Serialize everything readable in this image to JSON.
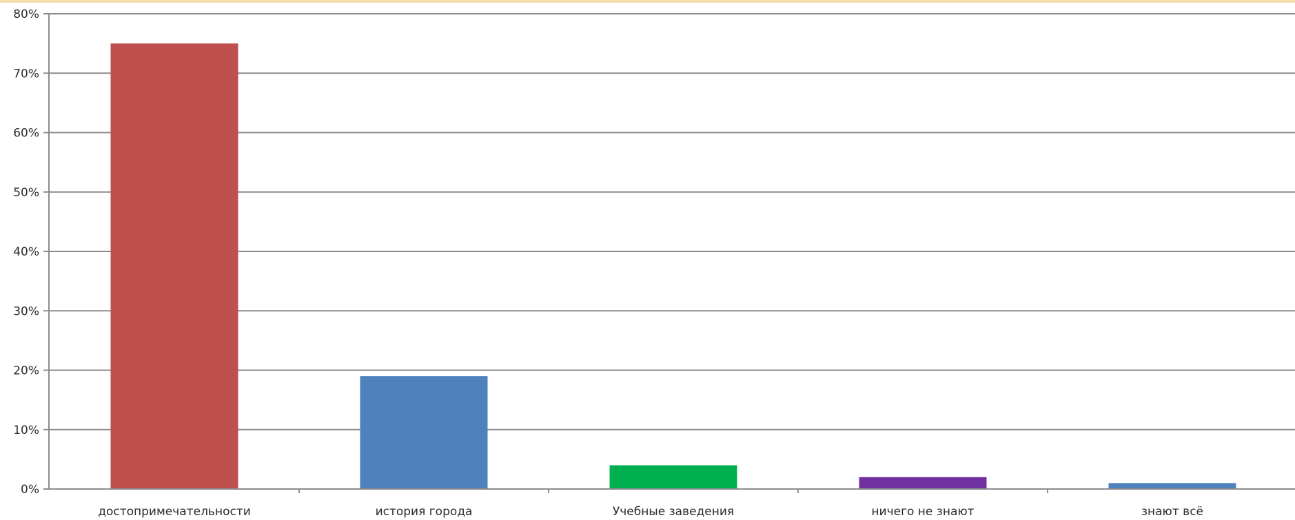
{
  "chart_data": {
    "type": "bar",
    "categories": [
      "достопримечательности",
      "история города",
      "Учебные заведения",
      "ничего не знают",
      "знают всё"
    ],
    "values": [
      75,
      19,
      4,
      2,
      1
    ],
    "colors": [
      "#c0504d",
      "#4f81bd",
      "#00b050",
      "#7030a0",
      "#4f81bd"
    ],
    "ylim": [
      0,
      80
    ],
    "yticks": [
      0,
      10,
      20,
      30,
      40,
      50,
      60,
      70,
      80
    ],
    "ytick_labels": [
      "0%",
      "10%",
      "20%",
      "30%",
      "40%",
      "50%",
      "60%",
      "70%",
      "80%"
    ],
    "grid": true,
    "title": "",
    "xlabel": "",
    "ylabel": ""
  }
}
